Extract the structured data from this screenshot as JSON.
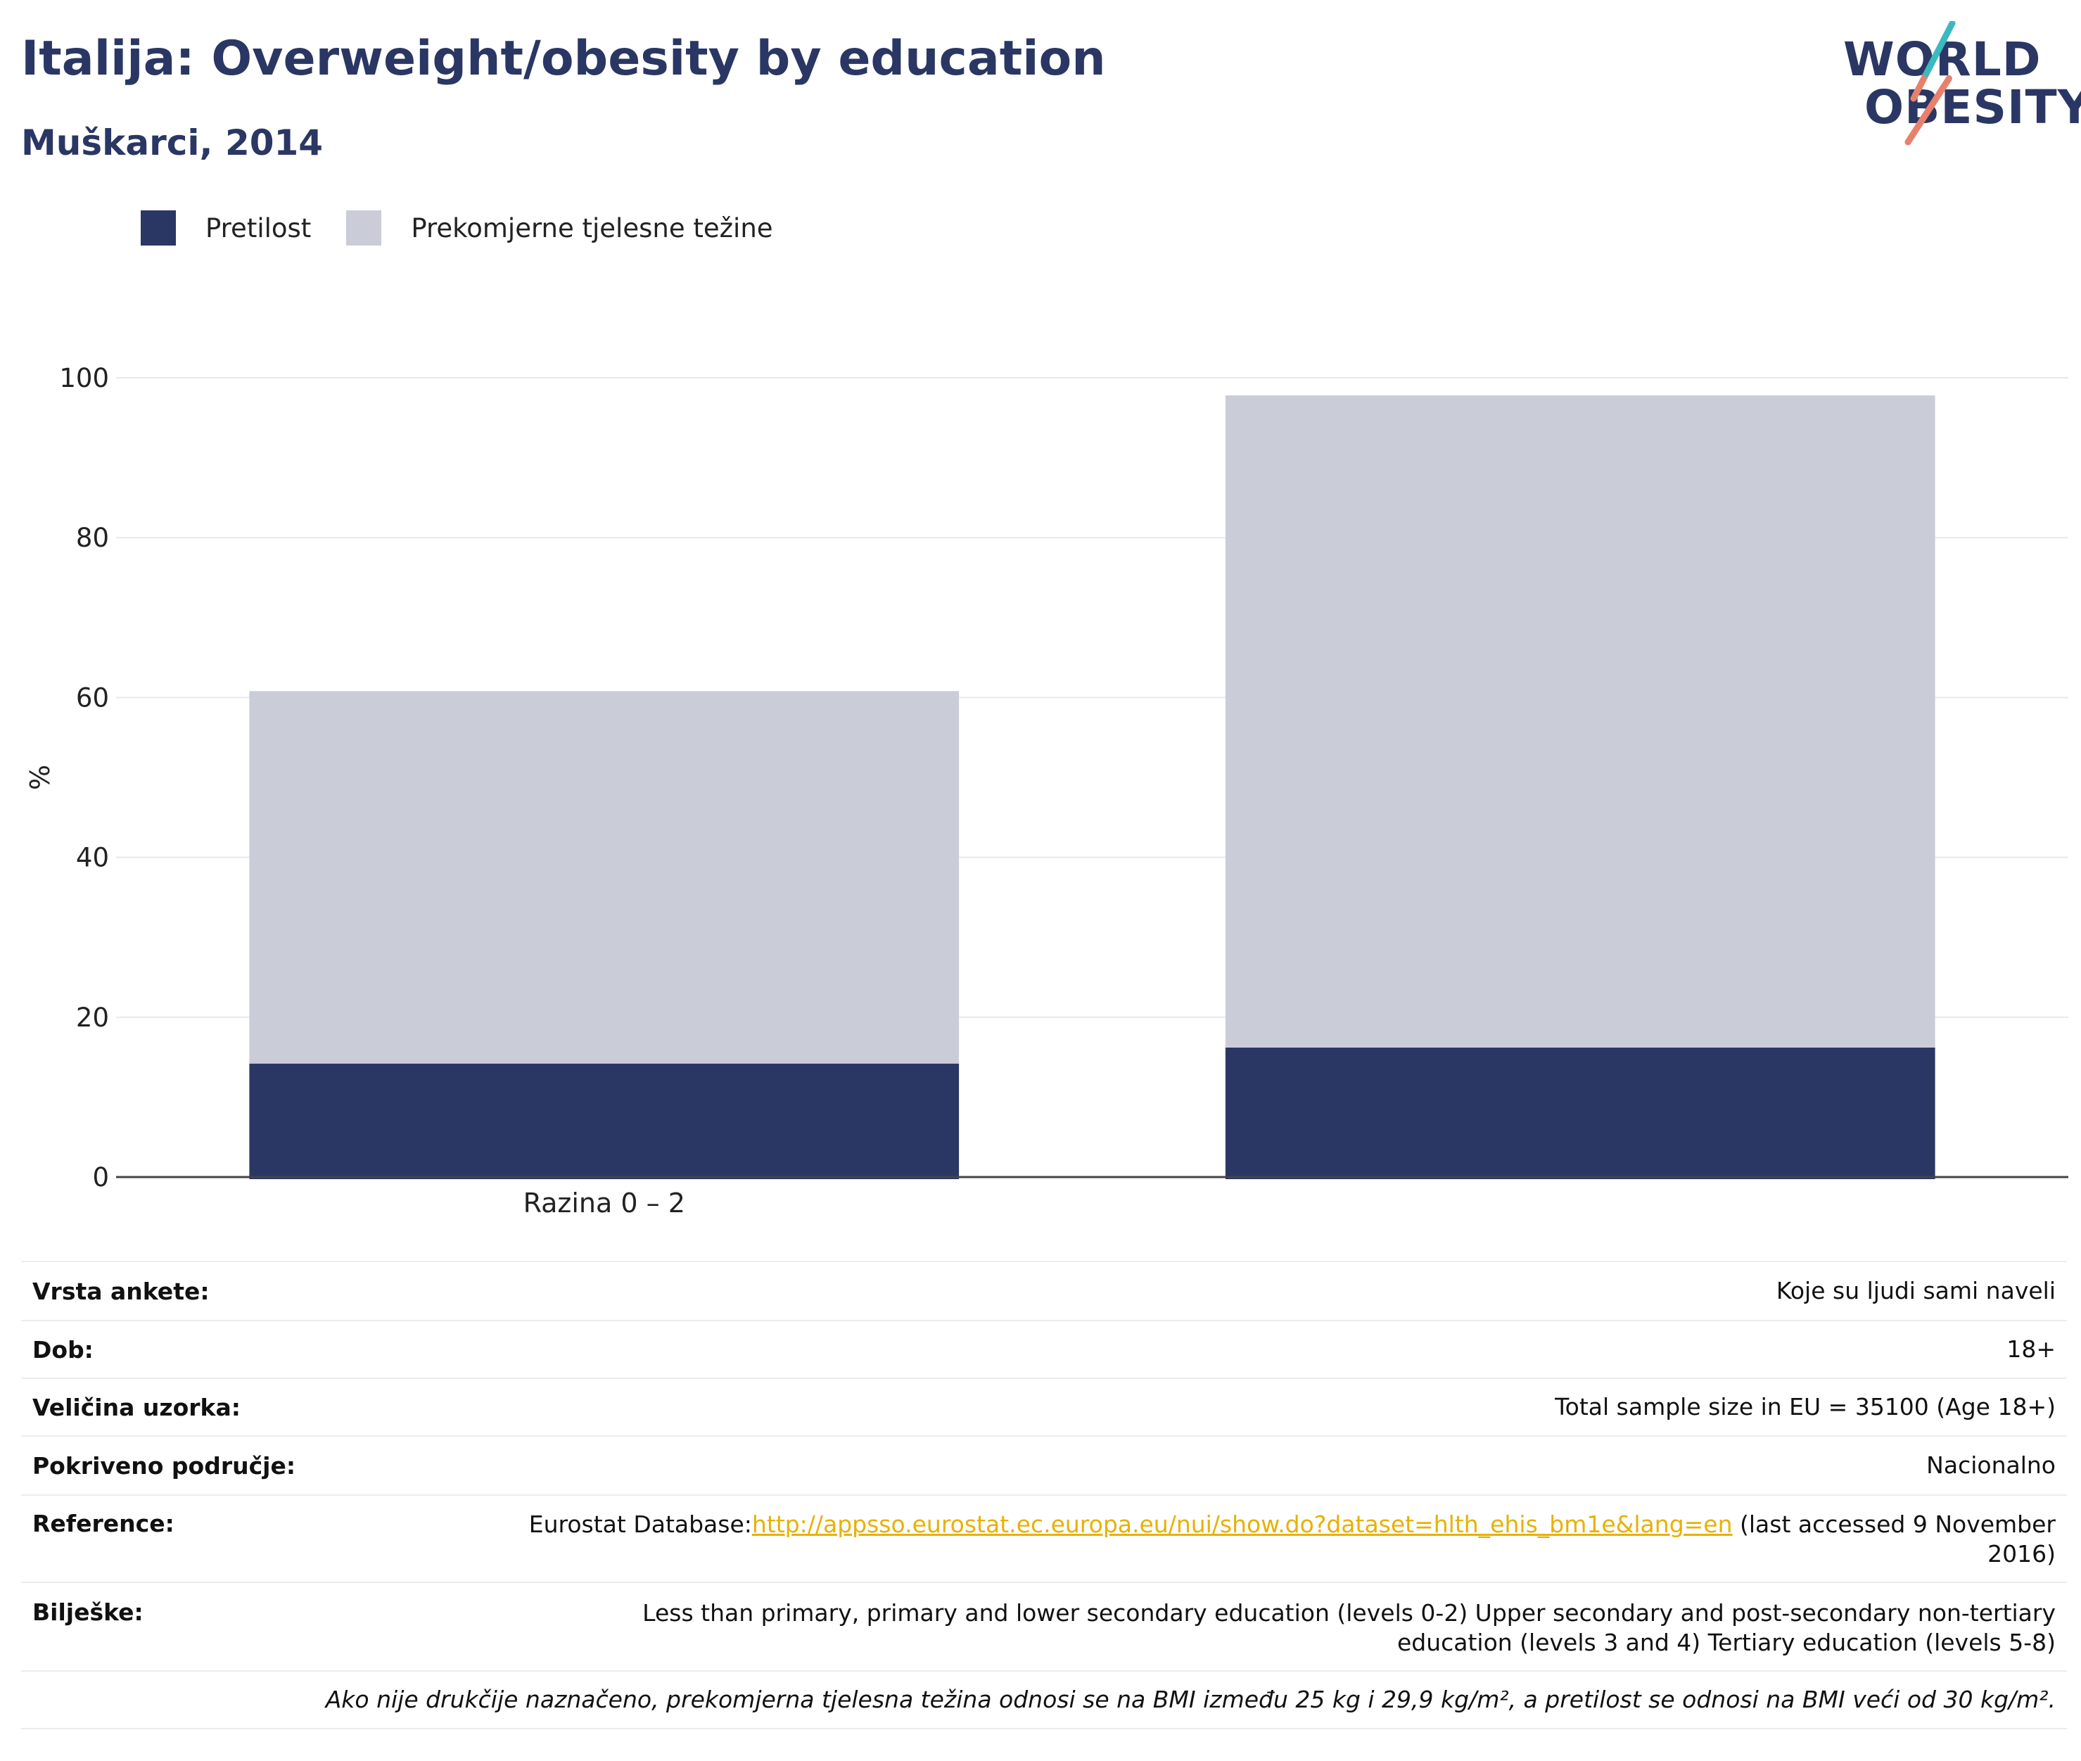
{
  "title": "Italija: Overweight/obesity by education",
  "subtitle": "Muškarci, 2014",
  "logo": {
    "line1": "WORLD",
    "line2": "OBESITY"
  },
  "colors": {
    "obesity": "#2a3764",
    "overweight": "#cacdd8",
    "accent": "#e8b100",
    "text": "#2a3764"
  },
  "legend": [
    {
      "label": "Pretilost",
      "color": "#2a3764"
    },
    {
      "label": "Prekomjerne tjelesne težine",
      "color": "#cacdd8"
    }
  ],
  "chart_data": {
    "type": "bar",
    "stacked": true,
    "categories": [
      "Razina 0 – 2",
      ""
    ],
    "series": [
      {
        "name": "Pretilost",
        "values": [
          14.2,
          16.2
        ]
      },
      {
        "name": "Prekomjerne tjelesne težine",
        "values": [
          46.6,
          81.6
        ]
      }
    ],
    "ylabel": "%",
    "ylim": [
      0,
      100
    ],
    "yticks": [
      0,
      20,
      40,
      60,
      80,
      100
    ],
    "grid": true,
    "legend_position": "top-left"
  },
  "info": {
    "survey_type": {
      "label": "Vrsta ankete:",
      "value": "Koje su ljudi sami naveli"
    },
    "age": {
      "label": "Dob:",
      "value": "18+"
    },
    "sample": {
      "label": "Veličina uzorka:",
      "value": "Total sample size in EU = 35100 (Age 18+)"
    },
    "coverage": {
      "label": "Pokriveno područje:",
      "value": "Nacionalno"
    },
    "reference": {
      "label": "Reference:",
      "prefix": "Eurostat Database:",
      "link": "http://appsso.eurostat.ec.europa.eu/nui/show.do?dataset=hlth_ehis_bm1e&lang=en",
      "suffix": " (last accessed 9 November 2016)"
    },
    "notes": {
      "label": "Bilješke:",
      "value": "Less than primary, primary and lower secondary education (levels 0-2) Upper secondary and post-secondary non-tertiary education (levels 3 and 4) Tertiary education (levels 5-8)"
    },
    "footnote": "Ako nije drukčije naznačeno, prekomjerna tjelesna težina odnosi se na BMI između 25 kg i 29,9 kg/m², a pretilost se odnosi na BMI veći od 30 kg/m²."
  }
}
